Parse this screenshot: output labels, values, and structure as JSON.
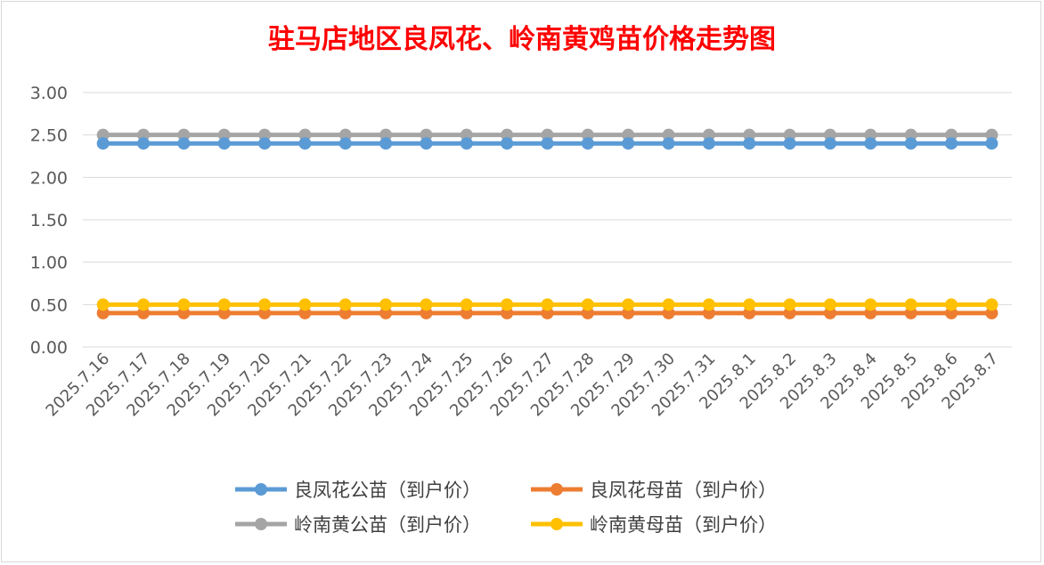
{
  "chart_data": {
    "type": "line",
    "title": "驻马店地区良凤花、岭南黄鸡苗价格走势图",
    "xlabel": "",
    "ylabel": "",
    "ylim": [
      0,
      3
    ],
    "yticks": [
      "0.00",
      "0.50",
      "1.00",
      "1.50",
      "2.00",
      "2.50",
      "3.00"
    ],
    "grid": true,
    "legend_position": "bottom",
    "x": [
      "2025.7.16",
      "2025.7.17",
      "2025.7.18",
      "2025.7.19",
      "2025.7.20",
      "2025.7.21",
      "2025.7.22",
      "2025.7.23",
      "2025.7.24",
      "2025.7.25",
      "2025.7.26",
      "2025.7.27",
      "2025.7.28",
      "2025.7.29",
      "2025.7.30",
      "2025.7.31",
      "2025.8.1",
      "2025.8.2",
      "2025.8.3",
      "2025.8.4",
      "2025.8.5",
      "2025.8.6",
      "2025.8.7"
    ],
    "series": [
      {
        "name": "良凤花公苗（到户价）",
        "color": "#5b9bd5",
        "values": [
          2.4,
          2.4,
          2.4,
          2.4,
          2.4,
          2.4,
          2.4,
          2.4,
          2.4,
          2.4,
          2.4,
          2.4,
          2.4,
          2.4,
          2.4,
          2.4,
          2.4,
          2.4,
          2.4,
          2.4,
          2.4,
          2.4,
          2.4
        ]
      },
      {
        "name": "良凤花母苗（到户价）",
        "color": "#ed7d31",
        "values": [
          0.4,
          0.4,
          0.4,
          0.4,
          0.4,
          0.4,
          0.4,
          0.4,
          0.4,
          0.4,
          0.4,
          0.4,
          0.4,
          0.4,
          0.4,
          0.4,
          0.4,
          0.4,
          0.4,
          0.4,
          0.4,
          0.4,
          0.4
        ]
      },
      {
        "name": "岭南黄公苗（到户价）",
        "color": "#a5a5a5",
        "values": [
          2.5,
          2.5,
          2.5,
          2.5,
          2.5,
          2.5,
          2.5,
          2.5,
          2.5,
          2.5,
          2.5,
          2.5,
          2.5,
          2.5,
          2.5,
          2.5,
          2.5,
          2.5,
          2.5,
          2.5,
          2.5,
          2.5,
          2.5
        ]
      },
      {
        "name": "岭南黄母苗（到户价）",
        "color": "#ffc000",
        "values": [
          0.5,
          0.5,
          0.5,
          0.5,
          0.5,
          0.5,
          0.5,
          0.5,
          0.5,
          0.5,
          0.5,
          0.5,
          0.5,
          0.5,
          0.5,
          0.5,
          0.5,
          0.5,
          0.5,
          0.5,
          0.5,
          0.5,
          0.5
        ]
      }
    ]
  }
}
